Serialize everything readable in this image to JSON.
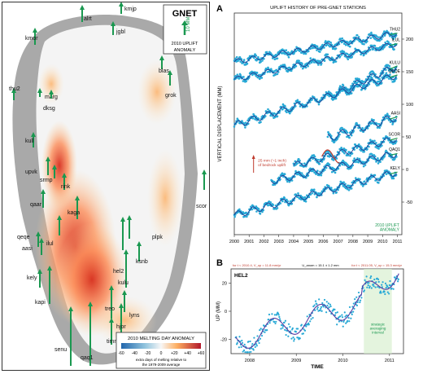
{
  "map": {
    "title": "GNET",
    "scale_label": "10 MM",
    "uplift_label": "2010 UPLIFT ANOMALY",
    "legend_title": "2010 MELTING DAY ANOMALY",
    "legend_ticks": [
      "-60",
      "-40",
      "-20",
      "0",
      "+20",
      "+40",
      "+60"
    ],
    "legend_caption": "extra days of melting relative to the 1979-2009 average",
    "stations": [
      "alrt",
      "kmjp",
      "jgbl",
      "kmor",
      "blas",
      "grok",
      "thu2",
      "marg",
      "dksg",
      "kull",
      "upvk",
      "srmp",
      "rink",
      "qaar",
      "kaga",
      "qeqe",
      "aasi",
      "ilul",
      "kely",
      "hel2",
      "ksnb",
      "plpk",
      "kulu",
      "kapi",
      "treo",
      "lyns",
      "hjor",
      "timm",
      "senu",
      "qaq1",
      "scor"
    ]
  },
  "chart_data": [
    {
      "panel": "A",
      "type": "scatter",
      "title": "UPLIFT HISTORY OF PRE-GNET STATIONS",
      "ylabel": "VERTICAL DISPLACEMENT (MM)",
      "xlabel": "",
      "ylim": [
        -100,
        240
      ],
      "yticks": [
        "-50",
        "0",
        "50",
        "100",
        "150",
        "200"
      ],
      "x_ticks": [
        "2000",
        "2001",
        "2002",
        "2003",
        "2004",
        "2005",
        "2006",
        "2007",
        "2008",
        "2009",
        "2010",
        "2011"
      ],
      "series": [
        {
          "name": "THU2",
          "start": 2000.0,
          "offset": 165,
          "trend": 4,
          "seasonal": 4
        },
        {
          "name": "ILUL",
          "start": 2000.0,
          "offset": 138,
          "trend": 5,
          "seasonal": 4
        },
        {
          "name": "KULU",
          "start": 2006.3,
          "offset": 112,
          "trend": 10,
          "seasonal": 5
        },
        {
          "name": "QEQE",
          "start": 2000.0,
          "offset": 68,
          "trend": 7,
          "seasonal": 5
        },
        {
          "name": "AASI",
          "start": 2006.3,
          "offset": 48,
          "trend": 7,
          "seasonal": 6
        },
        {
          "name": "SCOR",
          "start": 2004.0,
          "offset": 6,
          "trend": 6,
          "seasonal": 5
        },
        {
          "name": "QAQ1",
          "start": 2002.5,
          "offset": -18,
          "trend": 5,
          "seasonal": 5
        },
        {
          "name": "KELY",
          "start": 2000.0,
          "offset": -70,
          "trend": 6,
          "seasonal": 5
        }
      ],
      "annotation": "25 mm (~1 inch) of bedrock uplift",
      "anomaly_label": "2010 UPLIFT ANOMALY"
    },
    {
      "panel": "B",
      "type": "scatter",
      "station": "HEL2",
      "ylabel": "UP (MM)",
      "xlabel": "TIME",
      "yticks": [
        "20",
        "0",
        "-20"
      ],
      "x_ticks": [
        "2008",
        "2009",
        "2010",
        "2011"
      ],
      "left_note": "for t < 2010.4, V_up = 11.8 mm/yr",
      "mid_note": "U_anom = 15.1 ± 1.2 mm",
      "right_note": "for t < 2011.05, V_up = 15.3 mm/yr",
      "interval_label": "strategic averaging interval",
      "rate_before": 11.8,
      "rate_after": 15.3,
      "anomaly_mm": 15.1
    }
  ],
  "panel_labels": {
    "a": "A",
    "b": "B"
  }
}
